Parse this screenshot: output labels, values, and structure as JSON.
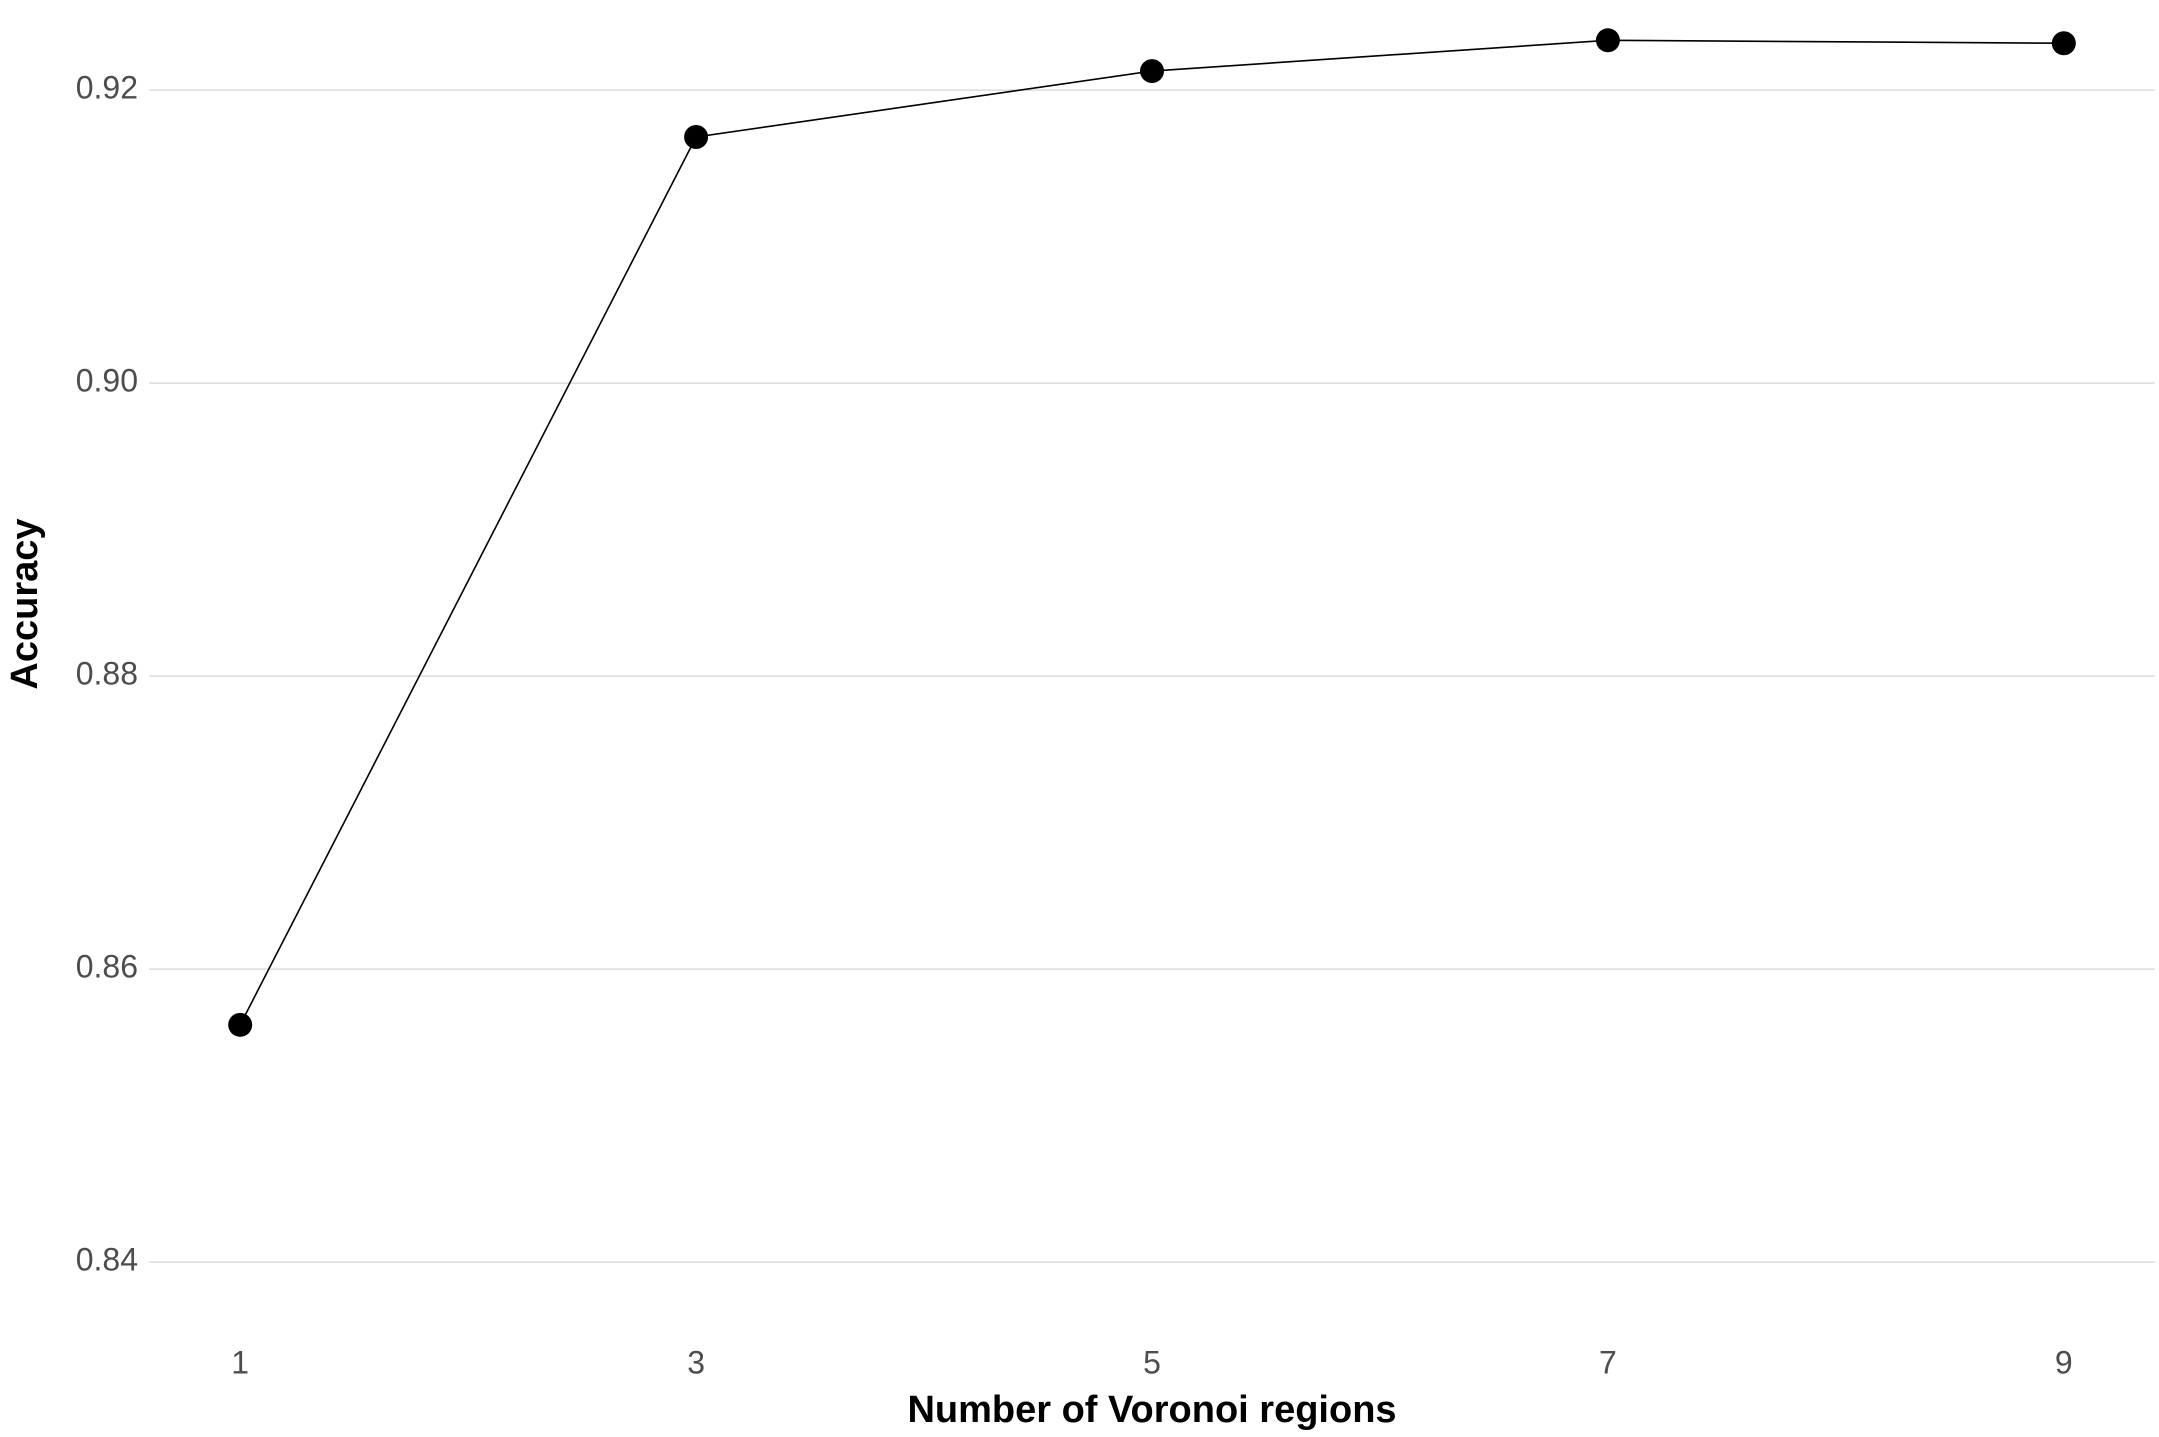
{
  "chart_data": {
    "type": "line",
    "x_label": "Number of Voronoi regions",
    "y_label": "Accuracy",
    "x": [
      1,
      3,
      5,
      7,
      9
    ],
    "series": [
      {
        "color": "#000000",
        "values": [
          0.8562,
          0.9168,
          0.9213,
          0.9234,
          0.9232
        ]
      }
    ],
    "xlim": [
      0.6,
      9.4
    ],
    "xticks": [
      1,
      3,
      5,
      7,
      9
    ],
    "ylim": [
      0.8366,
      0.9254
    ],
    "yticks": [
      0.84,
      0.86,
      0.88,
      {
        "value": 0.9,
        "label": "0.90"
      },
      0.92
    ],
    "grid": true
  }
}
